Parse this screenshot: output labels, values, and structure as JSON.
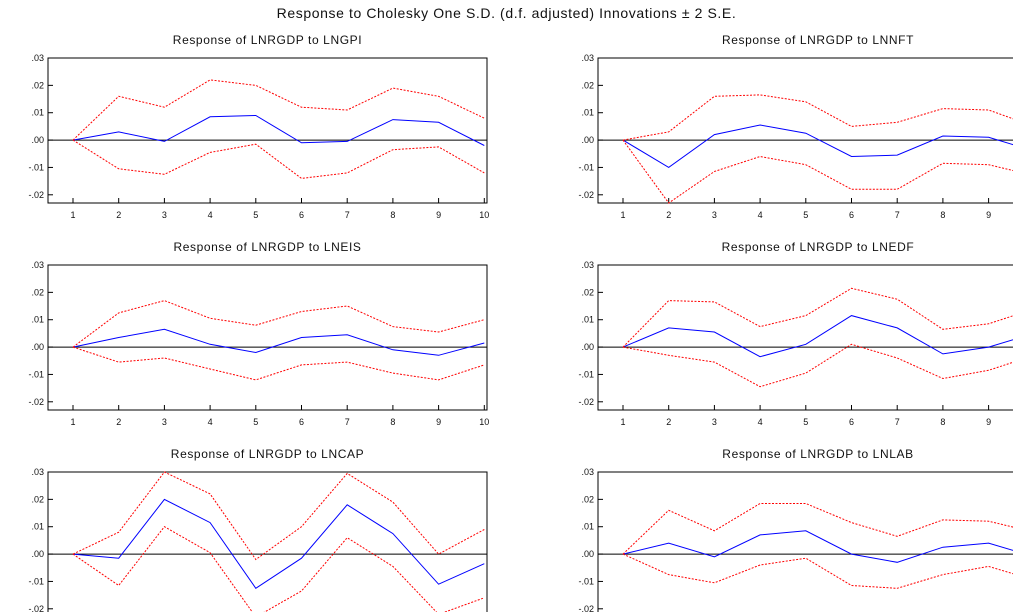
{
  "title": "Response to Cholesky One S.D. (d.f. adjusted) Innovations ± 2 S.E.",
  "chart_data": [
    {
      "type": "line",
      "title": "Response of LNRGDP to LNGPI",
      "x": [
        1,
        2,
        3,
        4,
        5,
        6,
        7,
        8,
        9,
        10
      ],
      "xticks": [
        "1",
        "2",
        "3",
        "4",
        "5",
        "6",
        "7",
        "8",
        "9",
        "10"
      ],
      "ylim": [
        -0.023,
        0.03
      ],
      "yticks": [
        ".03",
        ".02",
        ".01",
        ".00",
        "-.01",
        "-.02"
      ],
      "ytick_values": [
        0.03,
        0.02,
        0.01,
        0.0,
        -0.01,
        -0.02
      ],
      "series": [
        {
          "role": "response",
          "color": "#0000ff",
          "values": [
            0.0,
            0.003,
            -0.0005,
            0.0085,
            0.009,
            -0.001,
            -0.0005,
            0.0075,
            0.0065,
            -0.002
          ]
        },
        {
          "role": "upper",
          "color": "#ff0000",
          "values": [
            0.0,
            0.016,
            0.012,
            0.022,
            0.02,
            0.012,
            0.011,
            0.019,
            0.016,
            0.008
          ]
        },
        {
          "role": "lower",
          "color": "#ff0000",
          "values": [
            0.0,
            -0.0105,
            -0.0125,
            -0.0045,
            -0.0015,
            -0.014,
            -0.012,
            -0.0035,
            -0.0025,
            -0.012
          ]
        }
      ]
    },
    {
      "type": "line",
      "title": "Response of LNRGDP to LNNFT",
      "x": [
        1,
        2,
        3,
        4,
        5,
        6,
        7,
        8,
        9,
        10
      ],
      "xticks": [
        "1",
        "2",
        "3",
        "4",
        "5",
        "6",
        "7",
        "8",
        "9"
      ],
      "ylim": [
        -0.023,
        0.03
      ],
      "yticks": [
        ".03",
        ".02",
        ".01",
        ".00",
        "-.01",
        "-.02"
      ],
      "ytick_values": [
        0.03,
        0.02,
        0.01,
        0.0,
        -0.01,
        -0.02
      ],
      "series": [
        {
          "role": "response",
          "color": "#0000ff",
          "values": [
            0.0,
            -0.01,
            0.002,
            0.0055,
            0.0025,
            -0.006,
            -0.0055,
            0.0015,
            0.001,
            -0.004
          ]
        },
        {
          "role": "upper",
          "color": "#ff0000",
          "values": [
            0.0,
            0.003,
            0.016,
            0.0165,
            0.014,
            0.005,
            0.0065,
            0.0115,
            0.011,
            0.005
          ]
        },
        {
          "role": "lower",
          "color": "#ff0000",
          "values": [
            0.0,
            -0.023,
            -0.0115,
            -0.006,
            -0.009,
            -0.018,
            -0.018,
            -0.0085,
            -0.009,
            -0.013
          ]
        }
      ]
    },
    {
      "type": "line",
      "title": "Response of LNRGDP to LNEIS",
      "x": [
        1,
        2,
        3,
        4,
        5,
        6,
        7,
        8,
        9,
        10
      ],
      "xticks": [
        "1",
        "2",
        "3",
        "4",
        "5",
        "6",
        "7",
        "8",
        "9",
        "10"
      ],
      "ylim": [
        -0.023,
        0.03
      ],
      "yticks": [
        ".03",
        ".02",
        ".01",
        ".00",
        "-.01",
        "-.02"
      ],
      "ytick_values": [
        0.03,
        0.02,
        0.01,
        0.0,
        -0.01,
        -0.02
      ],
      "series": [
        {
          "role": "response",
          "color": "#0000ff",
          "values": [
            0.0,
            0.0035,
            0.0065,
            0.001,
            -0.002,
            0.0035,
            0.0045,
            -0.001,
            -0.003,
            0.0015
          ]
        },
        {
          "role": "upper",
          "color": "#ff0000",
          "values": [
            0.0,
            0.0125,
            0.017,
            0.0105,
            0.008,
            0.013,
            0.015,
            0.0075,
            0.0055,
            0.01
          ]
        },
        {
          "role": "lower",
          "color": "#ff0000",
          "values": [
            0.0,
            -0.0055,
            -0.004,
            -0.008,
            -0.012,
            -0.0065,
            -0.0055,
            -0.0095,
            -0.012,
            -0.0065
          ]
        }
      ]
    },
    {
      "type": "line",
      "title": "Response of LNRGDP to LNEDF",
      "x": [
        1,
        2,
        3,
        4,
        5,
        6,
        7,
        8,
        9,
        10
      ],
      "xticks": [
        "1",
        "2",
        "3",
        "4",
        "5",
        "6",
        "7",
        "8",
        "9"
      ],
      "ylim": [
        -0.023,
        0.03
      ],
      "yticks": [
        ".03",
        ".02",
        ".01",
        ".00",
        "-.01",
        "-.02"
      ],
      "ytick_values": [
        0.03,
        0.02,
        0.01,
        0.0,
        -0.01,
        -0.02
      ],
      "series": [
        {
          "role": "response",
          "color": "#0000ff",
          "values": [
            0.0,
            0.007,
            0.0055,
            -0.0035,
            0.001,
            0.0115,
            0.007,
            -0.0025,
            0.0,
            0.005
          ]
        },
        {
          "role": "upper",
          "color": "#ff0000",
          "values": [
            0.0,
            0.017,
            0.0165,
            0.0075,
            0.0115,
            0.0215,
            0.0175,
            0.0065,
            0.0085,
            0.014
          ]
        },
        {
          "role": "lower",
          "color": "#ff0000",
          "values": [
            0.0,
            -0.003,
            -0.0055,
            -0.0145,
            -0.0095,
            0.001,
            -0.004,
            -0.0115,
            -0.0085,
            -0.003
          ]
        }
      ]
    },
    {
      "type": "line",
      "title": "Response of LNRGDP to LNCAP",
      "x": [
        1,
        2,
        3,
        4,
        5,
        6,
        7,
        8,
        9,
        10
      ],
      "xticks": [],
      "ylim": [
        -0.023,
        0.03
      ],
      "yticks": [
        ".03",
        ".02",
        ".01",
        ".00",
        "-.01",
        "-.02"
      ],
      "ytick_values": [
        0.03,
        0.02,
        0.01,
        0.0,
        -0.01,
        -0.02
      ],
      "series": [
        {
          "role": "response",
          "color": "#0000ff",
          "values": [
            0.0,
            -0.0015,
            0.02,
            0.0115,
            -0.0125,
            -0.0015,
            0.018,
            0.0075,
            -0.011,
            -0.0035
          ]
        },
        {
          "role": "upper",
          "color": "#ff0000",
          "values": [
            0.0,
            0.008,
            0.03,
            0.022,
            -0.002,
            0.01,
            0.0295,
            0.019,
            0.0,
            0.009
          ]
        },
        {
          "role": "lower",
          "color": "#ff0000",
          "values": [
            0.0,
            -0.0115,
            0.01,
            0.0005,
            -0.023,
            -0.0135,
            0.006,
            -0.0045,
            -0.022,
            -0.016
          ]
        }
      ]
    },
    {
      "type": "line",
      "title": "Response of LNRGDP to LNLAB",
      "x": [
        1,
        2,
        3,
        4,
        5,
        6,
        7,
        8,
        9,
        10
      ],
      "xticks": [],
      "ylim": [
        -0.023,
        0.03
      ],
      "yticks": [
        ".03",
        ".02",
        ".01",
        ".00",
        "-.01",
        "-.02"
      ],
      "ytick_values": [
        0.03,
        0.02,
        0.01,
        0.0,
        -0.01,
        -0.02
      ],
      "series": [
        {
          "role": "response",
          "color": "#0000ff",
          "values": [
            0.0,
            0.004,
            -0.001,
            0.007,
            0.0085,
            0.0,
            -0.003,
            0.0025,
            0.004,
            -0.001
          ]
        },
        {
          "role": "upper",
          "color": "#ff0000",
          "values": [
            0.0,
            0.016,
            0.0085,
            0.0185,
            0.0185,
            0.0115,
            0.0065,
            0.0125,
            0.012,
            0.008
          ]
        },
        {
          "role": "lower",
          "color": "#ff0000",
          "values": [
            0.0,
            -0.0075,
            -0.0105,
            -0.004,
            -0.0015,
            -0.0115,
            -0.0125,
            -0.0075,
            -0.0045,
            -0.0095
          ]
        }
      ]
    }
  ]
}
